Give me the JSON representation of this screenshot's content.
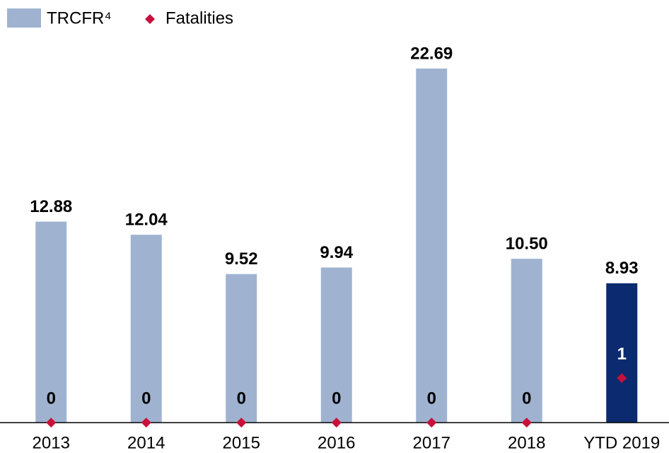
{
  "chart_data": {
    "type": "bar",
    "categories": [
      "2013",
      "2014",
      "2015",
      "2016",
      "2017",
      "2018",
      "YTD 2019"
    ],
    "series": [
      {
        "name": "TRCFR⁴",
        "type": "bar",
        "color": "#9fb3d1",
        "colors": [
          "#9fb3d1",
          "#9fb3d1",
          "#9fb3d1",
          "#9fb3d1",
          "#9fb3d1",
          "#9fb3d1",
          "#0b2a6f"
        ],
        "values": [
          12.88,
          12.04,
          9.52,
          9.94,
          22.69,
          10.5,
          8.93
        ],
        "value_labels": [
          "12.88",
          "12.04",
          "9.52",
          "9.94",
          "22.69",
          "10.50",
          "8.93"
        ]
      },
      {
        "name": "Fatalities",
        "type": "scatter",
        "axis": "y2",
        "color": "#c8103a",
        "values": [
          0,
          0,
          0,
          0,
          0,
          0,
          1
        ]
      }
    ],
    "legend": "top-left"
  }
}
